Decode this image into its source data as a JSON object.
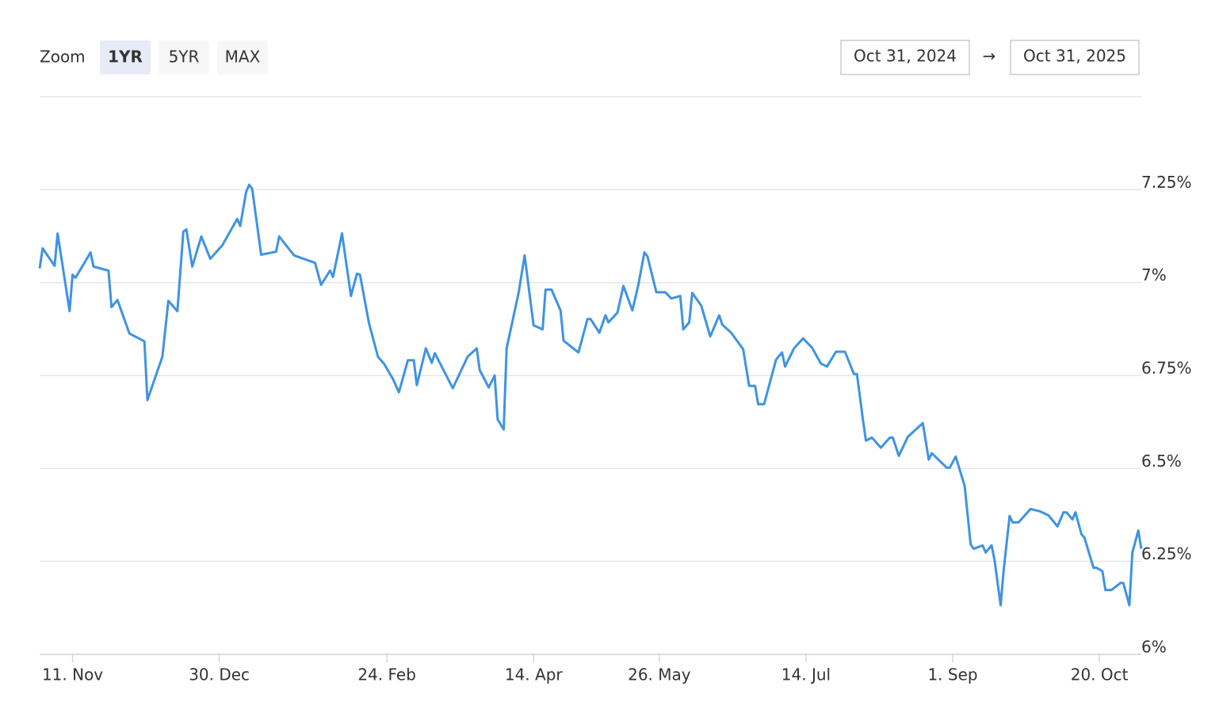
{
  "range_selector": {
    "zoom_label": "Zoom",
    "buttons": [
      "1YR",
      "5YR",
      "MAX"
    ],
    "selected": 0,
    "from": "Oct 31, 2024",
    "arrow": "→",
    "to": "Oct 31, 2025"
  },
  "chart_data": {
    "type": "line",
    "x": [
      "2024-10-31",
      "2024-11-01",
      "2024-11-05",
      "2024-11-06",
      "2024-11-10",
      "2024-11-11",
      "2024-11-12",
      "2024-11-17",
      "2024-11-18",
      "2024-11-23",
      "2024-11-24",
      "2024-11-26",
      "2024-11-30",
      "2024-12-05",
      "2024-12-06",
      "2024-12-11",
      "2024-12-13",
      "2024-12-16",
      "2024-12-18",
      "2024-12-19",
      "2024-12-21",
      "2024-12-24",
      "2024-12-27",
      "2024-12-31",
      "2025-01-05",
      "2025-01-06",
      "2025-01-08",
      "2025-01-09",
      "2025-01-10",
      "2025-01-13",
      "2025-01-18",
      "2025-01-19",
      "2025-01-24",
      "2025-01-31",
      "2025-02-02",
      "2025-02-05",
      "2025-02-06",
      "2025-02-09",
      "2025-02-12",
      "2025-02-14",
      "2025-02-15",
      "2025-02-18",
      "2025-02-21",
      "2025-02-23",
      "2025-02-26",
      "2025-02-28",
      "2025-03-03",
      "2025-03-05",
      "2025-03-06",
      "2025-03-09",
      "2025-03-11",
      "2025-03-12",
      "2025-03-18",
      "2025-03-23",
      "2025-03-26",
      "2025-03-27",
      "2025-03-30",
      "2025-04-01",
      "2025-04-02",
      "2025-04-04",
      "2025-04-05",
      "2025-04-09",
      "2025-04-11",
      "2025-04-14",
      "2025-04-17",
      "2025-04-18",
      "2025-04-20",
      "2025-04-23",
      "2025-04-24",
      "2025-04-29",
      "2025-05-02",
      "2025-05-03",
      "2025-05-06",
      "2025-05-08",
      "2025-05-09",
      "2025-05-12",
      "2025-05-14",
      "2025-05-17",
      "2025-05-19",
      "2025-05-21",
      "2025-05-22",
      "2025-05-25",
      "2025-05-28",
      "2025-05-30",
      "2025-06-02",
      "2025-06-03",
      "2025-06-05",
      "2025-06-06",
      "2025-06-09",
      "2025-06-12",
      "2025-06-15",
      "2025-06-16",
      "2025-06-19",
      "2025-06-23",
      "2025-06-25",
      "2025-06-27",
      "2025-06-28",
      "2025-06-30",
      "2025-07-02",
      "2025-07-04",
      "2025-07-06",
      "2025-07-07",
      "2025-07-10",
      "2025-07-13",
      "2025-07-16",
      "2025-07-19",
      "2025-07-21",
      "2025-07-24",
      "2025-07-27",
      "2025-07-30",
      "2025-07-31",
      "2025-08-02",
      "2025-08-03",
      "2025-08-05",
      "2025-08-08",
      "2025-08-11",
      "2025-08-12",
      "2025-08-14",
      "2025-08-17",
      "2025-08-22",
      "2025-08-24",
      "2025-08-25",
      "2025-08-30",
      "2025-08-31",
      "2025-09-02",
      "2025-09-05",
      "2025-09-07",
      "2025-09-08",
      "2025-09-11",
      "2025-09-12",
      "2025-09-14",
      "2025-09-15",
      "2025-09-17",
      "2025-09-18",
      "2025-09-20",
      "2025-09-21",
      "2025-09-23",
      "2025-09-27",
      "2025-09-30",
      "2025-10-03",
      "2025-10-06",
      "2025-10-08",
      "2025-10-09",
      "2025-10-11",
      "2025-10-12",
      "2025-10-14",
      "2025-10-15",
      "2025-10-18",
      "2025-10-19",
      "2025-10-21",
      "2025-10-22",
      "2025-10-24",
      "2025-10-27",
      "2025-10-28",
      "2025-10-30",
      "2025-10-31",
      "2025-11-02",
      "2025-11-03"
    ],
    "series": [
      {
        "color": "#3f93e2",
        "values": [
          7.038,
          7.092,
          7.045,
          7.132,
          6.923,
          7.021,
          7.013,
          7.081,
          7.043,
          7.032,
          6.934,
          6.953,
          6.863,
          6.842,
          6.684,
          6.801,
          6.951,
          6.923,
          7.137,
          7.143,
          7.043,
          7.124,
          7.064,
          7.1,
          7.171,
          7.152,
          7.244,
          7.263,
          7.252,
          7.075,
          7.083,
          7.124,
          7.073,
          7.053,
          6.994,
          7.032,
          7.015,
          7.132,
          6.964,
          7.024,
          7.021,
          6.891,
          6.801,
          6.782,
          6.741,
          6.705,
          6.791,
          6.791,
          6.724,
          6.823,
          6.784,
          6.81,
          6.716,
          6.801,
          6.823,
          6.765,
          6.718,
          6.75,
          6.632,
          6.605,
          6.823,
          6.972,
          7.073,
          6.885,
          6.874,
          6.981,
          6.981,
          6.925,
          6.844,
          6.812,
          6.902,
          6.902,
          6.865,
          6.912,
          6.893,
          6.919,
          6.991,
          6.925,
          6.994,
          7.081,
          7.071,
          6.974,
          6.974,
          6.957,
          6.964,
          6.874,
          6.893,
          6.972,
          6.938,
          6.855,
          6.912,
          6.887,
          6.865,
          6.821,
          6.722,
          6.722,
          6.673,
          6.673,
          6.733,
          6.793,
          6.812,
          6.774,
          6.823,
          6.85,
          6.825,
          6.782,
          6.774,
          6.814,
          6.814,
          6.754,
          6.754,
          6.632,
          6.575,
          6.583,
          6.556,
          6.583,
          6.583,
          6.534,
          6.585,
          6.622,
          6.524,
          6.541,
          6.502,
          6.502,
          6.532,
          6.453,
          6.295,
          6.284,
          6.293,
          6.274,
          6.293,
          6.252,
          6.132,
          6.226,
          6.372,
          6.355,
          6.355,
          6.391,
          6.385,
          6.374,
          6.344,
          6.382,
          6.382,
          6.363,
          6.382,
          6.323,
          6.314,
          6.233,
          6.233,
          6.224,
          6.173,
          6.173,
          6.192,
          6.192,
          6.132,
          6.274,
          6.333,
          6.284
        ]
      }
    ],
    "xlim": [
      "2024-10-31",
      "2025-11-03"
    ],
    "xticks": [
      {
        "value": "2024-11-11",
        "label": "11. Nov"
      },
      {
        "value": "2024-12-30",
        "label": "30. Dec"
      },
      {
        "value": "2025-02-24",
        "label": "24. Feb"
      },
      {
        "value": "2025-04-14",
        "label": "14. Apr"
      },
      {
        "value": "2025-05-26",
        "label": "26. May"
      },
      {
        "value": "2025-07-14",
        "label": "14. Jul"
      },
      {
        "value": "2025-09-01",
        "label": "1. Sep"
      },
      {
        "value": "2025-10-20",
        "label": "20. Oct"
      }
    ],
    "ylim": [
      6,
      7.5
    ],
    "yticks": [
      {
        "value": 6,
        "label": "6%"
      },
      {
        "value": 6.25,
        "label": "6.25%"
      },
      {
        "value": 6.5,
        "label": "6.5%"
      },
      {
        "value": 6.75,
        "label": "6.75%"
      },
      {
        "value": 7,
        "label": "7%"
      },
      {
        "value": 7.25,
        "label": "7.25%"
      }
    ],
    "grid": true
  }
}
